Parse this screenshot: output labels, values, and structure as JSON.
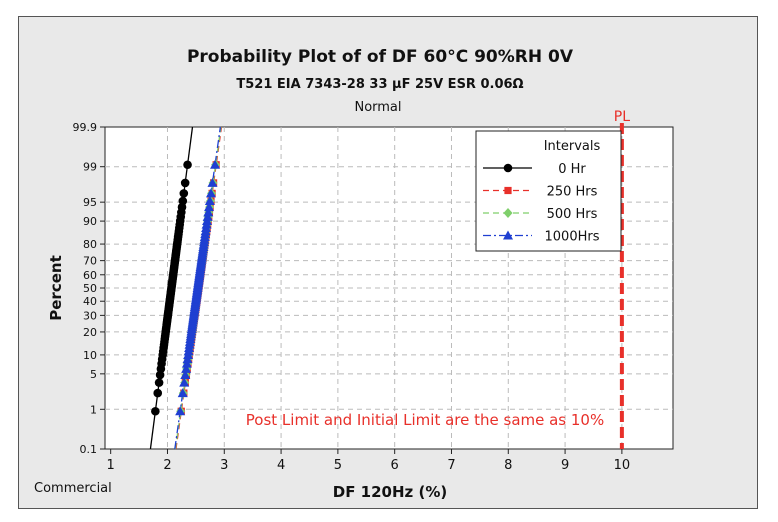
{
  "chart_data": {
    "type": "scatter",
    "title": "Probability Plot of of DF  60°C 90%RH 0V",
    "subtitle": "T521 EIA  7343-28 33 µF 25V ESR 0.06Ω",
    "distribution": "Normal",
    "xlabel": "DF 120Hz (%)",
    "ylabel": "Percent",
    "x_ticks": [
      1,
      2,
      3,
      4,
      5,
      6,
      7,
      8,
      9,
      10
    ],
    "y_ticks": [
      0.1,
      1,
      5,
      10,
      20,
      30,
      40,
      50,
      60,
      70,
      80,
      90,
      95,
      99,
      99.9
    ],
    "y_tick_labels": [
      "0.1",
      "1",
      "5",
      "10",
      "20",
      "30",
      "40",
      "50",
      "60",
      "70",
      "80",
      "90",
      "95",
      "99",
      "99.9"
    ],
    "xlim": [
      0.9,
      10.9
    ],
    "ylim": [
      0.1,
      99.9
    ],
    "y_scale": "normal-probability",
    "grid": true,
    "legend_title": "Intervals",
    "legend_position": "top-right",
    "series": [
      {
        "name": "0 Hr",
        "color": "#000000",
        "marker": "circle",
        "line": "solid",
        "mean": 2.07,
        "sd": 0.12,
        "n": 77
      },
      {
        "name": "250 Hrs",
        "color": "#e8302a",
        "marker": "square",
        "line": "dashed",
        "mean": 2.55,
        "sd": 0.13,
        "n": 77
      },
      {
        "name": "500 Hrs",
        "color": "#7fcf6b",
        "marker": "diamond",
        "line": "dashed",
        "mean": 2.54,
        "sd": 0.13,
        "n": 77
      },
      {
        "name": "1000Hrs",
        "color": "#1f3fd1",
        "marker": "triangle",
        "line": "dashdot",
        "mean": 2.53,
        "sd": 0.13,
        "n": 77
      }
    ],
    "reference_line": {
      "label": "PL",
      "x": 10,
      "color": "#e8302a"
    },
    "annotation": {
      "text": "Post Limit and Initial Limit are the same as 10%",
      "color": "#e8302a"
    }
  },
  "footer_label": "Commercial"
}
